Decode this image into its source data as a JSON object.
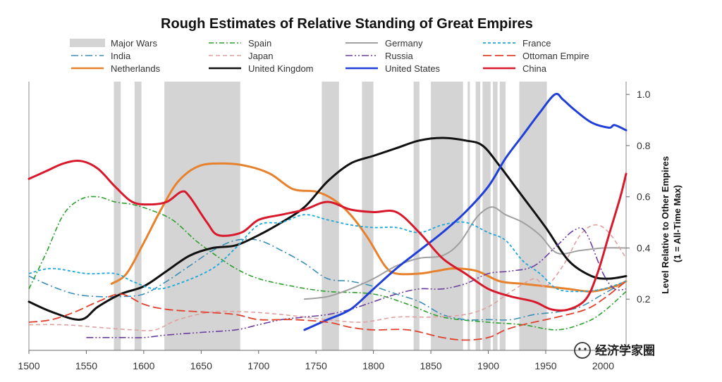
{
  "chart_data": {
    "type": "line",
    "title": "Rough Estimates of Relative Standing of Great Empires",
    "ylabel_line1": "Level Relative to Other Empires",
    "ylabel_line2": "(1 = All-Time Max)",
    "xlim": [
      1500,
      2020
    ],
    "ylim": [
      0,
      1.05
    ],
    "xticks": [
      1500,
      1550,
      1600,
      1650,
      1700,
      1750,
      1800,
      1850,
      1900,
      1950,
      2000
    ],
    "yticks": [
      0.2,
      0.4,
      0.6,
      0.8,
      1.0
    ],
    "ytick_labels": [
      "0.2",
      "0.4",
      "0.6",
      "0.8",
      "1.0"
    ],
    "legend_position": "top",
    "major_wars_label": "Major Wars",
    "major_wars": [
      [
        1574,
        1580
      ],
      [
        1592,
        1598
      ],
      [
        1618,
        1684
      ],
      [
        1755,
        1770
      ],
      [
        1790,
        1800
      ],
      [
        1835,
        1840
      ],
      [
        1850,
        1878
      ],
      [
        1882,
        1884
      ],
      [
        1889,
        1893
      ],
      [
        1895,
        1902
      ],
      [
        1904,
        1908
      ],
      [
        1910,
        1915
      ],
      [
        1927,
        1951
      ]
    ],
    "series": [
      {
        "name": "Spain",
        "color": "#2ca02c",
        "dash": "7,3,2,3",
        "width": 1.6,
        "points": [
          [
            1500,
            0.24
          ],
          [
            1515,
            0.38
          ],
          [
            1530,
            0.53
          ],
          [
            1545,
            0.59
          ],
          [
            1560,
            0.6
          ],
          [
            1575,
            0.58
          ],
          [
            1590,
            0.57
          ],
          [
            1605,
            0.55
          ],
          [
            1625,
            0.51
          ],
          [
            1645,
            0.43
          ],
          [
            1660,
            0.38
          ],
          [
            1680,
            0.32
          ],
          [
            1700,
            0.28
          ],
          [
            1730,
            0.25
          ],
          [
            1760,
            0.23
          ],
          [
            1800,
            0.22
          ],
          [
            1830,
            0.18
          ],
          [
            1860,
            0.13
          ],
          [
            1900,
            0.11
          ],
          [
            1930,
            0.1
          ],
          [
            1960,
            0.08
          ],
          [
            1985,
            0.11
          ],
          [
            2000,
            0.15
          ],
          [
            2020,
            0.23
          ]
        ]
      },
      {
        "name": "India",
        "color": "#3a8fb7",
        "dash": "10,4,2,4",
        "width": 1.6,
        "points": [
          [
            1500,
            0.29
          ],
          [
            1520,
            0.25
          ],
          [
            1540,
            0.22
          ],
          [
            1560,
            0.21
          ],
          [
            1580,
            0.21
          ],
          [
            1600,
            0.22
          ],
          [
            1620,
            0.27
          ],
          [
            1640,
            0.33
          ],
          [
            1660,
            0.39
          ],
          [
            1680,
            0.43
          ],
          [
            1700,
            0.43
          ],
          [
            1720,
            0.39
          ],
          [
            1740,
            0.34
          ],
          [
            1760,
            0.28
          ],
          [
            1780,
            0.27
          ],
          [
            1800,
            0.25
          ],
          [
            1820,
            0.22
          ],
          [
            1840,
            0.19
          ],
          [
            1860,
            0.14
          ],
          [
            1880,
            0.12
          ],
          [
            1900,
            0.12
          ],
          [
            1920,
            0.12
          ],
          [
            1940,
            0.14
          ],
          [
            1960,
            0.15
          ],
          [
            1980,
            0.17
          ],
          [
            2000,
            0.22
          ],
          [
            2020,
            0.27
          ]
        ]
      },
      {
        "name": "Netherlands",
        "color": "#e8812c",
        "dash": "",
        "width": 3,
        "points": [
          [
            1572,
            0.26
          ],
          [
            1585,
            0.3
          ],
          [
            1600,
            0.42
          ],
          [
            1615,
            0.55
          ],
          [
            1630,
            0.66
          ],
          [
            1648,
            0.72
          ],
          [
            1670,
            0.73
          ],
          [
            1690,
            0.72
          ],
          [
            1710,
            0.69
          ],
          [
            1730,
            0.63
          ],
          [
            1750,
            0.62
          ],
          [
            1765,
            0.59
          ],
          [
            1780,
            0.53
          ],
          [
            1795,
            0.44
          ],
          [
            1810,
            0.33
          ],
          [
            1820,
            0.3
          ],
          [
            1840,
            0.3
          ],
          [
            1855,
            0.31
          ],
          [
            1870,
            0.32
          ],
          [
            1890,
            0.31
          ],
          [
            1910,
            0.27
          ],
          [
            1930,
            0.26
          ],
          [
            1950,
            0.25
          ],
          [
            1970,
            0.24
          ],
          [
            1990,
            0.23
          ],
          [
            2010,
            0.25
          ],
          [
            2020,
            0.27
          ]
        ]
      },
      {
        "name": "Germany",
        "color": "#a0a0a0",
        "dash": "",
        "width": 2,
        "points": [
          [
            1740,
            0.2
          ],
          [
            1760,
            0.21
          ],
          [
            1780,
            0.24
          ],
          [
            1800,
            0.28
          ],
          [
            1820,
            0.33
          ],
          [
            1840,
            0.36
          ],
          [
            1860,
            0.37
          ],
          [
            1875,
            0.42
          ],
          [
            1890,
            0.52
          ],
          [
            1903,
            0.56
          ],
          [
            1915,
            0.53
          ],
          [
            1930,
            0.5
          ],
          [
            1945,
            0.45
          ],
          [
            1960,
            0.38
          ],
          [
            1980,
            0.39
          ],
          [
            2000,
            0.4
          ],
          [
            2020,
            0.4
          ]
        ]
      },
      {
        "name": "Japan",
        "color": "#e0a0a0",
        "dash": "6,4",
        "width": 1.6,
        "points": [
          [
            1500,
            0.1
          ],
          [
            1530,
            0.1
          ],
          [
            1560,
            0.09
          ],
          [
            1590,
            0.08
          ],
          [
            1610,
            0.08
          ],
          [
            1630,
            0.12
          ],
          [
            1660,
            0.15
          ],
          [
            1690,
            0.15
          ],
          [
            1720,
            0.14
          ],
          [
            1760,
            0.12
          ],
          [
            1790,
            0.11
          ],
          [
            1820,
            0.13
          ],
          [
            1850,
            0.13
          ],
          [
            1880,
            0.14
          ],
          [
            1900,
            0.17
          ],
          [
            1920,
            0.23
          ],
          [
            1940,
            0.28
          ],
          [
            1950,
            0.25
          ],
          [
            1965,
            0.33
          ],
          [
            1980,
            0.45
          ],
          [
            1993,
            0.49
          ],
          [
            2005,
            0.46
          ],
          [
            2020,
            0.36
          ]
        ]
      },
      {
        "name": "United Kingdom",
        "color": "#111111",
        "dash": "",
        "width": 3,
        "points": [
          [
            1500,
            0.19
          ],
          [
            1520,
            0.15
          ],
          [
            1545,
            0.12
          ],
          [
            1560,
            0.17
          ],
          [
            1580,
            0.22
          ],
          [
            1600,
            0.25
          ],
          [
            1620,
            0.31
          ],
          [
            1640,
            0.37
          ],
          [
            1660,
            0.4
          ],
          [
            1680,
            0.41
          ],
          [
            1700,
            0.45
          ],
          [
            1720,
            0.5
          ],
          [
            1740,
            0.56
          ],
          [
            1760,
            0.66
          ],
          [
            1780,
            0.73
          ],
          [
            1800,
            0.76
          ],
          [
            1820,
            0.79
          ],
          [
            1840,
            0.82
          ],
          [
            1860,
            0.83
          ],
          [
            1880,
            0.82
          ],
          [
            1895,
            0.8
          ],
          [
            1910,
            0.72
          ],
          [
            1930,
            0.6
          ],
          [
            1950,
            0.48
          ],
          [
            1970,
            0.35
          ],
          [
            1990,
            0.29
          ],
          [
            2005,
            0.28
          ],
          [
            2020,
            0.29
          ]
        ]
      },
      {
        "name": "France",
        "color": "#1fa8d8",
        "dash": "4,3",
        "width": 1.8,
        "points": [
          [
            1500,
            0.3
          ],
          [
            1520,
            0.32
          ],
          [
            1550,
            0.3
          ],
          [
            1575,
            0.3
          ],
          [
            1590,
            0.27
          ],
          [
            1610,
            0.24
          ],
          [
            1630,
            0.26
          ],
          [
            1660,
            0.32
          ],
          [
            1680,
            0.4
          ],
          [
            1700,
            0.49
          ],
          [
            1720,
            0.5
          ],
          [
            1740,
            0.53
          ],
          [
            1760,
            0.51
          ],
          [
            1780,
            0.49
          ],
          [
            1800,
            0.48
          ],
          [
            1820,
            0.48
          ],
          [
            1840,
            0.46
          ],
          [
            1860,
            0.49
          ],
          [
            1880,
            0.5
          ],
          [
            1900,
            0.46
          ],
          [
            1915,
            0.43
          ],
          [
            1930,
            0.35
          ],
          [
            1945,
            0.3
          ],
          [
            1960,
            0.24
          ],
          [
            1980,
            0.23
          ],
          [
            2000,
            0.24
          ],
          [
            2020,
            0.27
          ]
        ]
      },
      {
        "name": "Russia",
        "color": "#6b3fa0",
        "dash": "10,3,2,3,2,3",
        "width": 1.6,
        "points": [
          [
            1550,
            0.05
          ],
          [
            1580,
            0.05
          ],
          [
            1600,
            0.05
          ],
          [
            1620,
            0.06
          ],
          [
            1650,
            0.07
          ],
          [
            1680,
            0.08
          ],
          [
            1700,
            0.1
          ],
          [
            1720,
            0.12
          ],
          [
            1740,
            0.13
          ],
          [
            1760,
            0.14
          ],
          [
            1780,
            0.16
          ],
          [
            1800,
            0.19
          ],
          [
            1820,
            0.22
          ],
          [
            1840,
            0.24
          ],
          [
            1860,
            0.24
          ],
          [
            1880,
            0.26
          ],
          [
            1900,
            0.3
          ],
          [
            1920,
            0.31
          ],
          [
            1940,
            0.33
          ],
          [
            1960,
            0.41
          ],
          [
            1975,
            0.47
          ],
          [
            1985,
            0.46
          ],
          [
            2000,
            0.3
          ],
          [
            2010,
            0.24
          ],
          [
            2020,
            0.24
          ]
        ]
      },
      {
        "name": "United States",
        "color": "#1f3fd8",
        "dash": "",
        "width": 3,
        "points": [
          [
            1740,
            0.08
          ],
          [
            1760,
            0.12
          ],
          [
            1780,
            0.16
          ],
          [
            1800,
            0.24
          ],
          [
            1820,
            0.32
          ],
          [
            1840,
            0.39
          ],
          [
            1860,
            0.46
          ],
          [
            1880,
            0.54
          ],
          [
            1900,
            0.64
          ],
          [
            1915,
            0.75
          ],
          [
            1930,
            0.84
          ],
          [
            1945,
            0.93
          ],
          [
            1958,
            1.0
          ],
          [
            1965,
            0.98
          ],
          [
            1975,
            0.94
          ],
          [
            1990,
            0.89
          ],
          [
            2005,
            0.87
          ],
          [
            2010,
            0.88
          ],
          [
            2020,
            0.86
          ]
        ]
      },
      {
        "name": "Ottoman Empire",
        "color": "#e0402c",
        "dash": "12,5",
        "width": 1.8,
        "points": [
          [
            1500,
            0.11
          ],
          [
            1520,
            0.12
          ],
          [
            1540,
            0.15
          ],
          [
            1560,
            0.19
          ],
          [
            1580,
            0.22
          ],
          [
            1600,
            0.18
          ],
          [
            1620,
            0.16
          ],
          [
            1650,
            0.15
          ],
          [
            1680,
            0.14
          ],
          [
            1700,
            0.12
          ],
          [
            1730,
            0.12
          ],
          [
            1760,
            0.11
          ],
          [
            1780,
            0.09
          ],
          [
            1800,
            0.08
          ],
          [
            1830,
            0.08
          ],
          [
            1860,
            0.05
          ],
          [
            1880,
            0.04
          ],
          [
            1900,
            0.05
          ],
          [
            1915,
            0.08
          ],
          [
            1930,
            0.1
          ],
          [
            1960,
            0.13
          ],
          [
            1985,
            0.16
          ],
          [
            2000,
            0.2
          ],
          [
            2020,
            0.27
          ]
        ]
      },
      {
        "name": "China",
        "color": "#d8192c",
        "dash": "",
        "width": 3,
        "points": [
          [
            1500,
            0.67
          ],
          [
            1515,
            0.7
          ],
          [
            1530,
            0.73
          ],
          [
            1545,
            0.74
          ],
          [
            1560,
            0.71
          ],
          [
            1575,
            0.64
          ],
          [
            1590,
            0.58
          ],
          [
            1605,
            0.57
          ],
          [
            1620,
            0.58
          ],
          [
            1633,
            0.62
          ],
          [
            1640,
            0.6
          ],
          [
            1655,
            0.5
          ],
          [
            1665,
            0.45
          ],
          [
            1685,
            0.46
          ],
          [
            1700,
            0.51
          ],
          [
            1720,
            0.53
          ],
          [
            1740,
            0.55
          ],
          [
            1760,
            0.58
          ],
          [
            1780,
            0.55
          ],
          [
            1800,
            0.54
          ],
          [
            1820,
            0.54
          ],
          [
            1840,
            0.46
          ],
          [
            1860,
            0.36
          ],
          [
            1880,
            0.3
          ],
          [
            1900,
            0.24
          ],
          [
            1920,
            0.21
          ],
          [
            1940,
            0.19
          ],
          [
            1955,
            0.16
          ],
          [
            1970,
            0.16
          ],
          [
            1985,
            0.2
          ],
          [
            1995,
            0.3
          ],
          [
            2005,
            0.45
          ],
          [
            2015,
            0.6
          ],
          [
            2020,
            0.69
          ]
        ]
      }
    ]
  },
  "watermark_text": "经济学家圈"
}
